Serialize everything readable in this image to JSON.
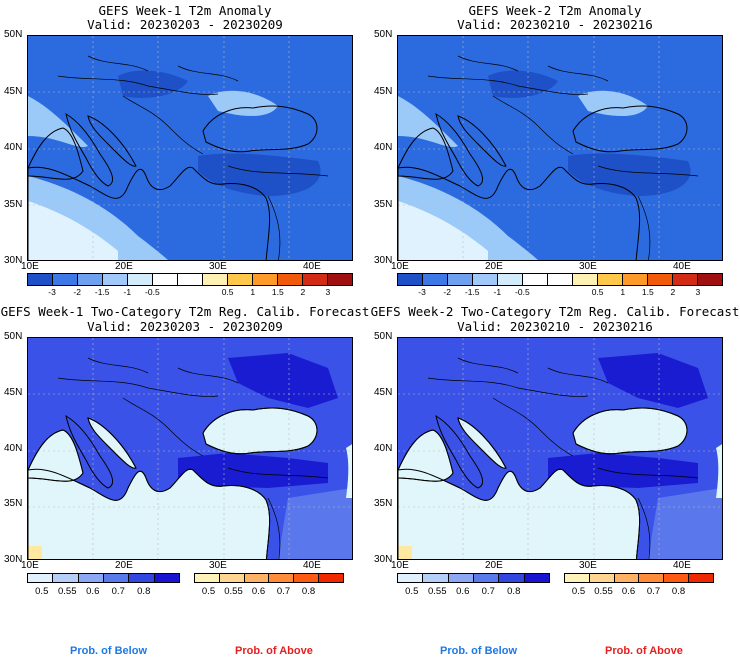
{
  "panels": [
    {
      "title_line1": "GEFS Week-1 T2m Anomaly",
      "title_line2": "Valid: 20230203 - 20230209"
    },
    {
      "title_line1": "GEFS Week-2 T2m Anomaly",
      "title_line2": "Valid: 20230210 - 20230216"
    },
    {
      "title_line1": "GEFS Week-1 Two-Category T2m Reg. Calib. Forecast",
      "title_line2": "Valid: 20230203 - 20230209"
    },
    {
      "title_line1": "GEFS Week-2 Two-Category T2m Reg. Calib. Forecast",
      "title_line2": "Valid: 20230210 - 20230216"
    }
  ],
  "lat_labels": [
    "50N",
    "45N",
    "40N",
    "35N",
    "30N"
  ],
  "lon_labels": [
    "10E",
    "20E",
    "30E",
    "40E"
  ],
  "anomaly_colorbar": {
    "colors": [
      "#1e50c8",
      "#3c78e6",
      "#6ea0f0",
      "#a0c8f8",
      "#d2ecfc",
      "#ffffff",
      "#ffffff",
      "#fff0b4",
      "#ffc84a",
      "#ff9a28",
      "#f05a0a",
      "#d22a14",
      "#a01010"
    ],
    "labels": [
      "-3",
      "-2",
      "-1.5",
      "-1",
      "-0.5",
      "0.5",
      "1",
      "1.5",
      "2",
      "3"
    ]
  },
  "prob_below_colorbar": {
    "colors": [
      "#e0f0fc",
      "#b4cff8",
      "#8ca8f4",
      "#5a7aec",
      "#3246e0",
      "#1a14d2"
    ],
    "labels": [
      "0.5",
      "0.55",
      "0.6",
      "0.7",
      "0.8"
    ]
  },
  "prob_above_colorbar": {
    "colors": [
      "#fff2b8",
      "#ffd690",
      "#ffb264",
      "#ff8c3c",
      "#ff5a14",
      "#f02800"
    ],
    "labels": [
      "0.5",
      "0.55",
      "0.6",
      "0.7",
      "0.8"
    ]
  },
  "footer": {
    "below_label": "Prob. of Below",
    "above_label": "Prob. of Above",
    "below_color": "#1e78e6",
    "above_color": "#e61e1e"
  },
  "map_colors": {
    "anom_base": "#2c6ae0",
    "anom_light": "#9ccaf8",
    "anom_pale": "#dff2fd",
    "anom_dark": "#1e50c8",
    "prob_sea": "#e0f6fa",
    "prob_land": "#3a52e8",
    "prob_dark": "#1a1cd2",
    "prob_light": "#5a78ec"
  }
}
